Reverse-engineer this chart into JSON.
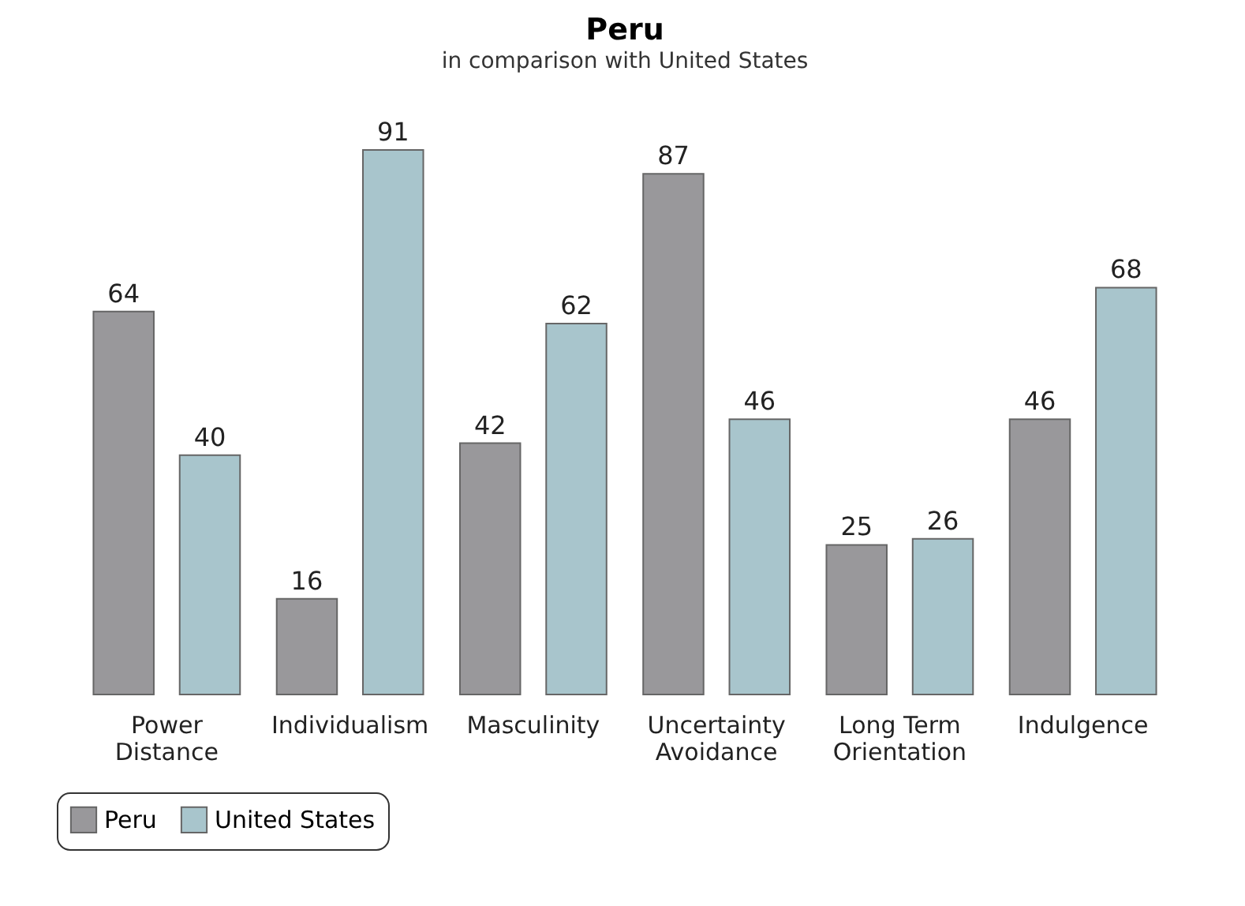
{
  "chart_data": {
    "type": "bar",
    "title": "Peru",
    "subtitle": "in comparison with United States",
    "categories": [
      "Power Distance",
      "Individualism",
      "Masculinity",
      "Uncertainty Avoidance",
      "Long Term Orientation",
      "Indulgence"
    ],
    "series": [
      {
        "name": "Peru",
        "color": "#99989b",
        "values": [
          64,
          16,
          42,
          87,
          25,
          46
        ]
      },
      {
        "name": "United States",
        "color": "#a8c5cc",
        "values": [
          40,
          91,
          62,
          46,
          26,
          68
        ]
      }
    ],
    "data_labels": true,
    "legend": "bottom",
    "tick_labels": "x",
    "grid": false
  }
}
